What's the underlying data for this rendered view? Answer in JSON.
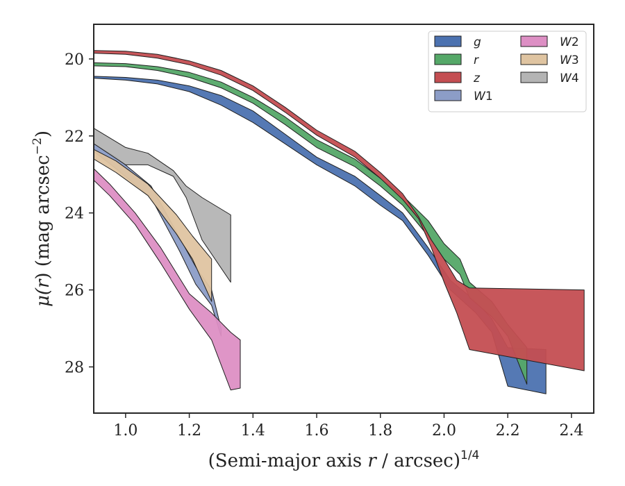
{
  "chart_data": {
    "type": "area",
    "title": "",
    "xlabel_prefix": "(Semi-major axis ",
    "xlabel_var": "r",
    "xlabel_mid": " / arcsec)",
    "xlabel_sup": "1/4",
    "ylabel_prefix": "μ(",
    "ylabel_var": "r",
    "ylabel_mid": ") (mag arcsec",
    "ylabel_sup": "−2",
    "ylabel_suffix": ")",
    "xlim": [
      0.9,
      2.47
    ],
    "ylim": [
      29.2,
      19.1
    ],
    "y_inverted": true,
    "grid": false,
    "legend_position": "top-right",
    "legend_columns": 2,
    "xticks": [
      "1.0",
      "1.2",
      "1.4",
      "1.6",
      "1.8",
      "2.0",
      "2.2",
      "2.4"
    ],
    "xtick_values": [
      1.0,
      1.2,
      1.4,
      1.6,
      1.8,
      2.0,
      2.2,
      2.4
    ],
    "yticks": [
      "20",
      "22",
      "24",
      "26",
      "28"
    ],
    "ytick_values": [
      20,
      22,
      24,
      26,
      28
    ],
    "series": [
      {
        "name": "g",
        "label_main": "g",
        "label_sub": "",
        "color": "#4c72b0",
        "upper": [
          [
            0.9,
            20.45
          ],
          [
            1.0,
            20.48
          ],
          [
            1.1,
            20.55
          ],
          [
            1.2,
            20.7
          ],
          [
            1.3,
            20.95
          ],
          [
            1.4,
            21.35
          ],
          [
            1.5,
            21.95
          ],
          [
            1.6,
            22.55
          ],
          [
            1.72,
            23.05
          ],
          [
            1.8,
            23.55
          ],
          [
            1.87,
            24.0
          ],
          [
            1.95,
            24.9
          ],
          [
            2.02,
            25.75
          ],
          [
            2.1,
            26.3
          ],
          [
            2.15,
            26.75
          ],
          [
            2.2,
            27.5
          ],
          [
            2.32,
            27.55
          ]
        ],
        "lower": [
          [
            0.9,
            20.5
          ],
          [
            1.0,
            20.55
          ],
          [
            1.1,
            20.65
          ],
          [
            1.2,
            20.85
          ],
          [
            1.3,
            21.2
          ],
          [
            1.4,
            21.65
          ],
          [
            1.5,
            22.2
          ],
          [
            1.6,
            22.75
          ],
          [
            1.72,
            23.3
          ],
          [
            1.8,
            23.8
          ],
          [
            1.87,
            24.2
          ],
          [
            1.95,
            25.1
          ],
          [
            2.02,
            26.0
          ],
          [
            2.1,
            26.6
          ],
          [
            2.15,
            27.1
          ],
          [
            2.2,
            28.5
          ],
          [
            2.32,
            28.7
          ]
        ]
      },
      {
        "name": "r",
        "label_main": "r",
        "label_sub": "",
        "color": "#55a868",
        "upper": [
          [
            0.9,
            20.1
          ],
          [
            1.0,
            20.12
          ],
          [
            1.1,
            20.2
          ],
          [
            1.2,
            20.35
          ],
          [
            1.3,
            20.6
          ],
          [
            1.4,
            21.0
          ],
          [
            1.5,
            21.5
          ],
          [
            1.6,
            22.1
          ],
          [
            1.72,
            22.6
          ],
          [
            1.8,
            23.1
          ],
          [
            1.87,
            23.55
          ],
          [
            1.95,
            24.2
          ],
          [
            2.0,
            24.8
          ],
          [
            2.05,
            25.2
          ],
          [
            2.08,
            25.8
          ],
          [
            2.15,
            26.3
          ],
          [
            2.2,
            26.9
          ],
          [
            2.26,
            27.5
          ]
        ],
        "lower": [
          [
            0.9,
            20.18
          ],
          [
            1.0,
            20.2
          ],
          [
            1.1,
            20.3
          ],
          [
            1.2,
            20.48
          ],
          [
            1.3,
            20.75
          ],
          [
            1.4,
            21.15
          ],
          [
            1.5,
            21.7
          ],
          [
            1.6,
            22.3
          ],
          [
            1.72,
            22.8
          ],
          [
            1.8,
            23.3
          ],
          [
            1.87,
            23.8
          ],
          [
            1.95,
            24.6
          ],
          [
            2.0,
            25.2
          ],
          [
            2.05,
            25.6
          ],
          [
            2.08,
            26.2
          ],
          [
            2.15,
            26.7
          ],
          [
            2.2,
            27.2
          ],
          [
            2.26,
            28.45
          ]
        ]
      },
      {
        "name": "z",
        "label_main": "z",
        "label_sub": "",
        "color": "#c44e52",
        "upper": [
          [
            0.9,
            19.78
          ],
          [
            1.0,
            19.8
          ],
          [
            1.1,
            19.88
          ],
          [
            1.2,
            20.05
          ],
          [
            1.3,
            20.3
          ],
          [
            1.4,
            20.7
          ],
          [
            1.5,
            21.25
          ],
          [
            1.6,
            21.85
          ],
          [
            1.72,
            22.4
          ],
          [
            1.8,
            22.95
          ],
          [
            1.87,
            23.5
          ],
          [
            1.92,
            24.1
          ],
          [
            1.96,
            24.7
          ],
          [
            2.0,
            25.2
          ],
          [
            2.04,
            25.75
          ],
          [
            2.08,
            25.95
          ],
          [
            2.44,
            26.0
          ]
        ],
        "lower": [
          [
            0.9,
            19.85
          ],
          [
            1.0,
            19.88
          ],
          [
            1.1,
            19.98
          ],
          [
            1.2,
            20.15
          ],
          [
            1.3,
            20.42
          ],
          [
            1.4,
            20.82
          ],
          [
            1.5,
            21.38
          ],
          [
            1.6,
            21.98
          ],
          [
            1.72,
            22.55
          ],
          [
            1.8,
            23.1
          ],
          [
            1.87,
            23.65
          ],
          [
            1.92,
            24.15
          ],
          [
            1.96,
            24.9
          ],
          [
            2.0,
            25.8
          ],
          [
            2.04,
            26.6
          ],
          [
            2.08,
            27.55
          ],
          [
            2.44,
            28.1
          ]
        ]
      },
      {
        "name": "W1",
        "label_main": "W",
        "label_sub": "1",
        "color": "#8c9dc7",
        "upper": [
          [
            0.9,
            22.2
          ],
          [
            0.97,
            22.55
          ],
          [
            1.08,
            23.3
          ],
          [
            1.17,
            24.65
          ],
          [
            1.22,
            25.4
          ],
          [
            1.27,
            26.0
          ],
          [
            1.3,
            27.0
          ]
        ],
        "lower": [
          [
            0.9,
            22.4
          ],
          [
            0.97,
            22.85
          ],
          [
            1.08,
            23.6
          ],
          [
            1.17,
            25.0
          ],
          [
            1.22,
            25.85
          ],
          [
            1.27,
            26.4
          ],
          [
            1.3,
            27.2
          ]
        ]
      },
      {
        "name": "W2",
        "label_main": "W",
        "label_sub": "2",
        "color": "#dd8fc4",
        "upper": [
          [
            0.9,
            22.85
          ],
          [
            0.95,
            23.25
          ],
          [
            1.03,
            24.0
          ],
          [
            1.11,
            24.9
          ],
          [
            1.2,
            26.1
          ],
          [
            1.27,
            26.6
          ],
          [
            1.33,
            27.1
          ],
          [
            1.36,
            27.3
          ]
        ],
        "lower": [
          [
            0.9,
            23.15
          ],
          [
            0.95,
            23.55
          ],
          [
            1.03,
            24.3
          ],
          [
            1.11,
            25.3
          ],
          [
            1.2,
            26.5
          ],
          [
            1.27,
            27.3
          ],
          [
            1.33,
            28.6
          ],
          [
            1.36,
            28.55
          ]
        ]
      },
      {
        "name": "W3",
        "label_main": "W",
        "label_sub": "3",
        "color": "#dfc4a1",
        "upper": [
          [
            0.9,
            22.35
          ],
          [
            0.97,
            22.65
          ],
          [
            1.07,
            23.25
          ],
          [
            1.16,
            24.05
          ],
          [
            1.21,
            24.6
          ],
          [
            1.27,
            25.2
          ]
        ],
        "lower": [
          [
            0.9,
            22.6
          ],
          [
            0.97,
            22.95
          ],
          [
            1.07,
            23.55
          ],
          [
            1.16,
            24.55
          ],
          [
            1.21,
            25.2
          ],
          [
            1.27,
            26.3
          ]
        ]
      },
      {
        "name": "W4",
        "label_main": "W",
        "label_sub": "4",
        "color": "#b4b4b4",
        "upper": [
          [
            0.9,
            21.8
          ],
          [
            1.0,
            22.3
          ],
          [
            1.07,
            22.45
          ],
          [
            1.15,
            22.9
          ],
          [
            1.19,
            23.3
          ],
          [
            1.24,
            23.6
          ],
          [
            1.33,
            24.05
          ]
        ],
        "lower": [
          [
            0.9,
            22.2
          ],
          [
            1.0,
            22.75
          ],
          [
            1.07,
            22.75
          ],
          [
            1.15,
            23.05
          ],
          [
            1.19,
            23.6
          ],
          [
            1.24,
            24.7
          ],
          [
            1.33,
            25.8
          ]
        ]
      }
    ]
  }
}
